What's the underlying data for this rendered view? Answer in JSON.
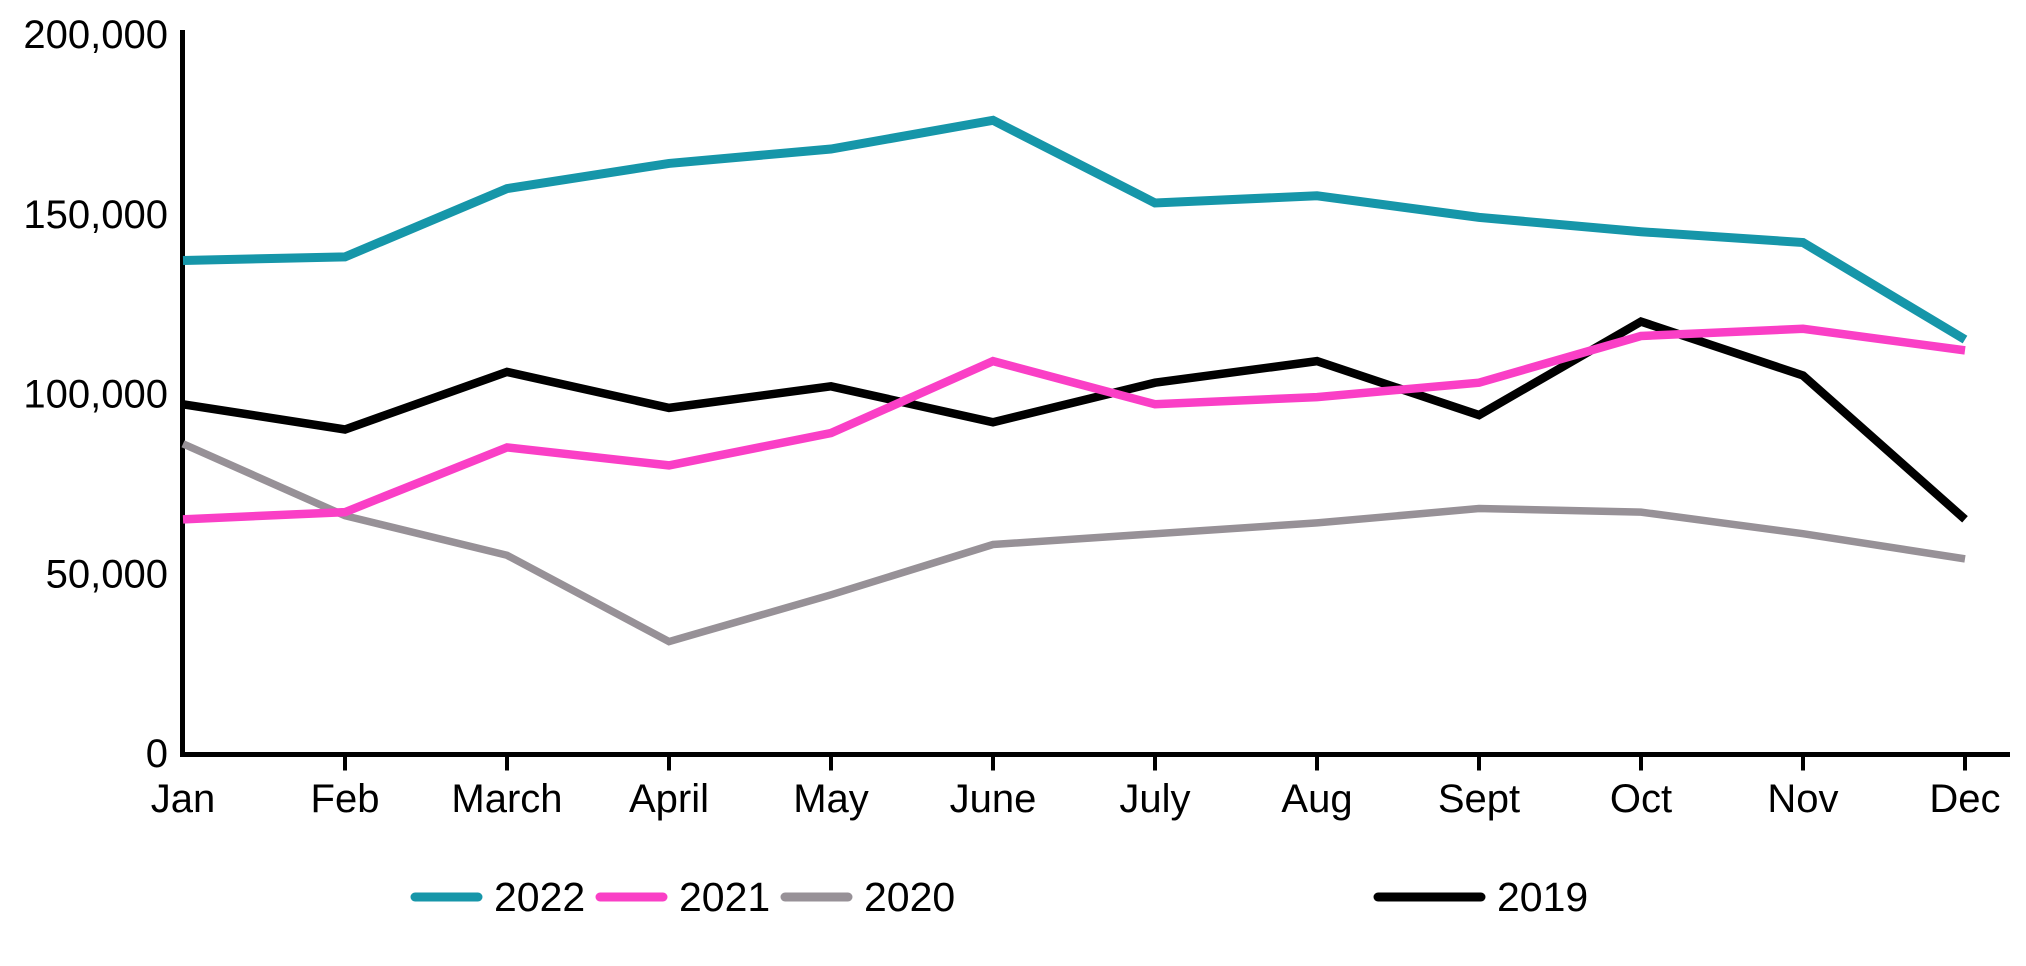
{
  "chart_data": {
    "type": "line",
    "title": "",
    "xlabel": "",
    "ylabel": "",
    "categories": [
      "Jan",
      "Feb",
      "March",
      "April",
      "May",
      "June",
      "July",
      "Aug",
      "Sept",
      "Oct",
      "Nov",
      "Dec"
    ],
    "series": [
      {
        "name": "2022",
        "color": "#1696A9",
        "values": [
          137000,
          138000,
          157000,
          164000,
          168000,
          176000,
          153000,
          155000,
          149000,
          145000,
          142000,
          115000
        ]
      },
      {
        "name": "2021",
        "color": "#FA3FC6",
        "values": [
          65000,
          67000,
          85000,
          80000,
          89000,
          109000,
          97000,
          99000,
          103000,
          116000,
          118000,
          112000
        ]
      },
      {
        "name": "2020",
        "color": "#979197",
        "values": [
          86000,
          66000,
          55000,
          31000,
          44000,
          58000,
          61000,
          64000,
          68000,
          67000,
          61000,
          54000
        ]
      },
      {
        "name": "2019",
        "color": "#000000",
        "values": [
          97000,
          90000,
          106000,
          96000,
          102000,
          92000,
          103000,
          109000,
          94000,
          120000,
          105000,
          65000
        ]
      }
    ],
    "ylim": [
      0,
      200000
    ],
    "yticks": [
      0,
      50000,
      100000,
      150000,
      200000
    ],
    "ytick_labels": [
      "0",
      "50,000",
      "100,000",
      "150,000",
      "200,000"
    ],
    "grid": false,
    "legend_position": "bottom",
    "axis_color": "#000000"
  }
}
